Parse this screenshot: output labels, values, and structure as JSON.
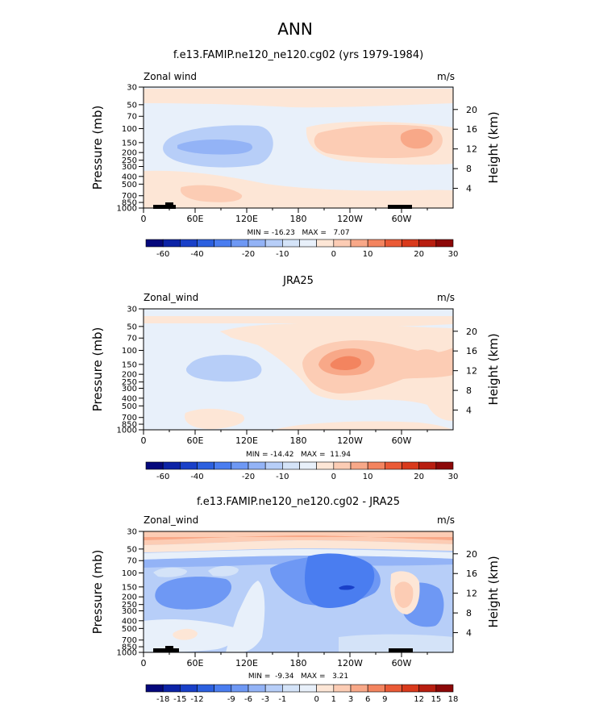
{
  "page_title": "ANN",
  "chart_data": [
    {
      "type": "heatmap",
      "title": "f.e13.FAMIP.ne120_ne120.cg02 (yrs 1979-1984)",
      "variable": "Zonal wind",
      "units": "m/s",
      "ylabel": "Pressure (mb)",
      "y2label": "Height (km)",
      "x_ticks": [
        "0",
        "60E",
        "120E",
        "180",
        "120W",
        "60W"
      ],
      "y_ticks": [
        "30",
        "50",
        "70",
        "100",
        "150",
        "200",
        "250",
        "300",
        "400",
        "500",
        "700",
        "850",
        "1000"
      ],
      "y2_ticks": [
        "20",
        "16",
        "12",
        "8",
        "4"
      ],
      "stats": "MIN = -16.23   MAX =   7.07",
      "min": -16.23,
      "max": 7.07,
      "colorbar_levels": [
        "-60",
        "-40",
        "-20",
        "-10",
        "0",
        "10",
        "20",
        "30"
      ],
      "colorbar_colors": [
        "#05087c",
        "#0c23a6",
        "#1940c8",
        "#2c60df",
        "#4a7df0",
        "#6e98f4",
        "#93b3f6",
        "#b7cef8",
        "#d4e3f8",
        "#e8f0fa",
        "#fde6d6",
        "#fcccb4",
        "#f8a888",
        "#f3845f",
        "#ea5a36",
        "#d93a1c",
        "#b81e10",
        "#8c0808"
      ]
    },
    {
      "type": "heatmap",
      "title": "JRA25",
      "variable": "Zonal_wind",
      "units": "m/s",
      "ylabel": "Pressure (mb)",
      "y2label": "Height (km)",
      "x_ticks": [
        "0",
        "60E",
        "120E",
        "180",
        "120W",
        "60W"
      ],
      "y_ticks": [
        "30",
        "50",
        "70",
        "100",
        "150",
        "200",
        "250",
        "300",
        "400",
        "500",
        "700",
        "850",
        "1000"
      ],
      "y2_ticks": [
        "20",
        "16",
        "12",
        "8",
        "4"
      ],
      "stats": "MIN = -14.42   MAX =  11.94",
      "min": -14.42,
      "max": 11.94,
      "colorbar_levels": [
        "-60",
        "-40",
        "-20",
        "-10",
        "0",
        "10",
        "20",
        "30"
      ],
      "colorbar_colors": [
        "#05087c",
        "#0c23a6",
        "#1940c8",
        "#2c60df",
        "#4a7df0",
        "#6e98f4",
        "#93b3f6",
        "#b7cef8",
        "#d4e3f8",
        "#e8f0fa",
        "#fde6d6",
        "#fcccb4",
        "#f8a888",
        "#f3845f",
        "#ea5a36",
        "#d93a1c",
        "#b81e10",
        "#8c0808"
      ]
    },
    {
      "type": "heatmap",
      "title": "f.e13.FAMIP.ne120_ne120.cg02 - JRA25",
      "variable": "Zonal_wind",
      "units": "m/s",
      "ylabel": "Pressure (mb)",
      "y2label": "Height (km)",
      "x_ticks": [
        "0",
        "60E",
        "120E",
        "180",
        "120W",
        "60W"
      ],
      "y_ticks": [
        "30",
        "50",
        "70",
        "100",
        "150",
        "200",
        "250",
        "300",
        "400",
        "500",
        "700",
        "850",
        "1000"
      ],
      "y2_ticks": [
        "20",
        "16",
        "12",
        "8",
        "4"
      ],
      "stats": "MIN =  -9.34   MAX =   3.21",
      "min": -9.34,
      "max": 3.21,
      "colorbar_levels": [
        "-18",
        "-15",
        "-12",
        "-9",
        "-6",
        "-3",
        "-1",
        "0",
        "1",
        "3",
        "6",
        "9",
        "12",
        "15",
        "18"
      ],
      "colorbar_colors": [
        "#05087c",
        "#0c23a6",
        "#1940c8",
        "#2c60df",
        "#4a7df0",
        "#6e98f4",
        "#93b3f6",
        "#b7cef8",
        "#d4e3f8",
        "#e8f0fa",
        "#fde6d6",
        "#fcccb4",
        "#f8a888",
        "#f3845f",
        "#ea5a36",
        "#d93a1c",
        "#b81e10",
        "#8c0808"
      ]
    }
  ]
}
